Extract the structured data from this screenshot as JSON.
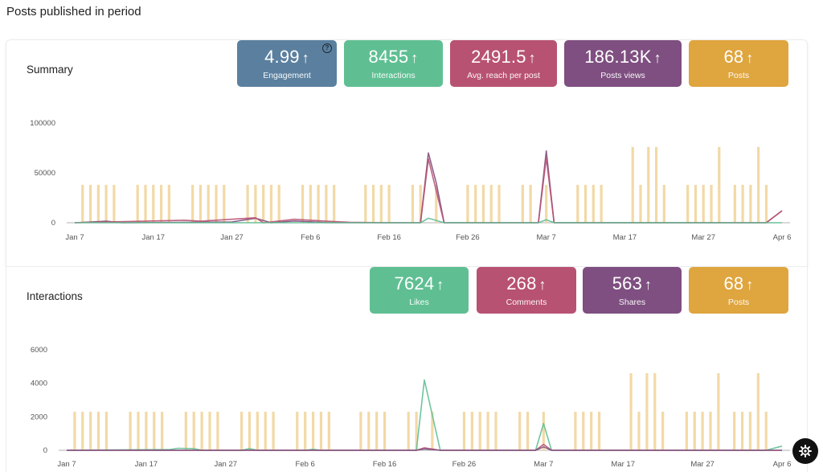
{
  "page": {
    "title": "Posts published in period"
  },
  "summary": {
    "title": "Summary",
    "stats": [
      {
        "key": "engagement",
        "value": "4.99",
        "label": "Engagement",
        "color": "#5b809f",
        "help": "?"
      },
      {
        "key": "interactions",
        "value": "8455",
        "label": "Interactions",
        "color": "#5fbf93"
      },
      {
        "key": "avg-reach",
        "value": "2491.5",
        "label": "Avg. reach per post",
        "color": "#b85272"
      },
      {
        "key": "posts-views",
        "value": "186.13K",
        "label": "Posts views",
        "color": "#7e4f80"
      },
      {
        "key": "posts",
        "value": "68",
        "label": "Posts",
        "color": "#dfa53e"
      }
    ]
  },
  "interactions": {
    "title": "Interactions",
    "stats": [
      {
        "key": "likes",
        "value": "7624",
        "label": "Likes",
        "color": "#5fbf93"
      },
      {
        "key": "comments",
        "value": "268",
        "label": "Comments",
        "color": "#b85272"
      },
      {
        "key": "shares",
        "value": "563",
        "label": "Shares",
        "color": "#7e4f80"
      },
      {
        "key": "posts",
        "value": "68",
        "label": "Posts",
        "color": "#dfa53e"
      }
    ]
  },
  "arrow_glyph": "↑",
  "settings_icon": "gear-icon",
  "chart_data": [
    {
      "type": "bar",
      "chart": "summary",
      "x_ticks": [
        "Jan 7",
        "Jan 17",
        "Jan 27",
        "Feb 6",
        "Feb 16",
        "Feb 26",
        "Mar 7",
        "Mar 17",
        "Mar 27",
        "Apr 6"
      ],
      "y_ticks": [
        "0",
        "50000",
        "100000"
      ],
      "ylim": [
        0,
        100000
      ],
      "xlim_days": [
        0,
        90
      ],
      "bar_color": "#f2d9a6",
      "bars": [
        {
          "d": 1,
          "v": 38000
        },
        {
          "d": 2,
          "v": 38000
        },
        {
          "d": 3,
          "v": 38000
        },
        {
          "d": 4,
          "v": 38000
        },
        {
          "d": 5,
          "v": 38000
        },
        {
          "d": 8,
          "v": 38000
        },
        {
          "d": 9,
          "v": 38000
        },
        {
          "d": 10,
          "v": 38000
        },
        {
          "d": 11,
          "v": 38000
        },
        {
          "d": 12,
          "v": 38000
        },
        {
          "d": 15,
          "v": 38000
        },
        {
          "d": 16,
          "v": 38000
        },
        {
          "d": 17,
          "v": 38000
        },
        {
          "d": 18,
          "v": 38000
        },
        {
          "d": 19,
          "v": 38000
        },
        {
          "d": 22,
          "v": 38000
        },
        {
          "d": 23,
          "v": 38000
        },
        {
          "d": 24,
          "v": 38000
        },
        {
          "d": 25,
          "v": 38000
        },
        {
          "d": 26,
          "v": 38000
        },
        {
          "d": 29,
          "v": 38000
        },
        {
          "d": 30,
          "v": 38000
        },
        {
          "d": 31,
          "v": 38000
        },
        {
          "d": 32,
          "v": 38000
        },
        {
          "d": 33,
          "v": 38000
        },
        {
          "d": 37,
          "v": 38000
        },
        {
          "d": 38,
          "v": 38000
        },
        {
          "d": 39,
          "v": 38000
        },
        {
          "d": 40,
          "v": 38000
        },
        {
          "d": 43,
          "v": 38000
        },
        {
          "d": 44,
          "v": 38000
        },
        {
          "d": 46,
          "v": 38000
        },
        {
          "d": 50,
          "v": 38000
        },
        {
          "d": 51,
          "v": 38000
        },
        {
          "d": 52,
          "v": 38000
        },
        {
          "d": 53,
          "v": 38000
        },
        {
          "d": 54,
          "v": 38000
        },
        {
          "d": 57,
          "v": 38000
        },
        {
          "d": 58,
          "v": 38000
        },
        {
          "d": 60,
          "v": 38000
        },
        {
          "d": 64,
          "v": 38000
        },
        {
          "d": 65,
          "v": 38000
        },
        {
          "d": 66,
          "v": 38000
        },
        {
          "d": 67,
          "v": 38000
        },
        {
          "d": 71,
          "v": 76000
        },
        {
          "d": 72,
          "v": 38000
        },
        {
          "d": 73,
          "v": 76000
        },
        {
          "d": 74,
          "v": 76000
        },
        {
          "d": 75,
          "v": 38000
        },
        {
          "d": 78,
          "v": 38000
        },
        {
          "d": 79,
          "v": 38000
        },
        {
          "d": 80,
          "v": 38000
        },
        {
          "d": 81,
          "v": 38000
        },
        {
          "d": 82,
          "v": 76000
        },
        {
          "d": 84,
          "v": 38000
        },
        {
          "d": 85,
          "v": 38000
        },
        {
          "d": 86,
          "v": 38000
        },
        {
          "d": 87,
          "v": 76000
        },
        {
          "d": 88,
          "v": 38000
        }
      ],
      "series": [
        {
          "color": "#7e4f80",
          "points": [
            [
              0,
              0
            ],
            [
              4,
              1500
            ],
            [
              6,
              0
            ],
            [
              20,
              800
            ],
            [
              23,
              4500
            ],
            [
              25,
              0
            ],
            [
              28,
              1800
            ],
            [
              32,
              200
            ],
            [
              40,
              0
            ],
            [
              44,
              0
            ],
            [
              45,
              70000
            ],
            [
              46,
              40000
            ],
            [
              47,
              0
            ],
            [
              59,
              0
            ],
            [
              60,
              72000
            ],
            [
              61,
              0
            ],
            [
              74,
              0
            ],
            [
              80,
              0
            ],
            [
              88,
              0
            ],
            [
              90,
              12000
            ]
          ]
        },
        {
          "color": "#b85272",
          "points": [
            [
              0,
              0
            ],
            [
              14,
              2500
            ],
            [
              16,
              1500
            ],
            [
              23,
              5000
            ],
            [
              24,
              0
            ],
            [
              28,
              3500
            ],
            [
              32,
              1500
            ],
            [
              35,
              500
            ],
            [
              40,
              0
            ],
            [
              44,
              0
            ],
            [
              45,
              64000
            ],
            [
              47,
              0
            ],
            [
              59,
              0
            ],
            [
              60,
              65000
            ],
            [
              61,
              0
            ],
            [
              88,
              0
            ],
            [
              90,
              12000
            ]
          ]
        },
        {
          "color": "#5fbf93",
          "points": [
            [
              0,
              0
            ],
            [
              44,
              0
            ],
            [
              45,
              4500
            ],
            [
              47,
              0
            ],
            [
              59,
              0
            ],
            [
              60,
              3000
            ],
            [
              61,
              0
            ],
            [
              90,
              0
            ]
          ]
        }
      ]
    },
    {
      "type": "bar",
      "chart": "interactions",
      "x_ticks": [
        "Jan 7",
        "Jan 17",
        "Jan 27",
        "Feb 6",
        "Feb 16",
        "Feb 26",
        "Mar 7",
        "Mar 17",
        "Mar 27",
        "Apr 6"
      ],
      "y_ticks": [
        "0",
        "2000",
        "4000",
        "6000"
      ],
      "ylim": [
        0,
        6000
      ],
      "xlim_days": [
        0,
        90
      ],
      "bar_color": "#f2d9a6",
      "bars": [
        {
          "d": 1,
          "v": 2300
        },
        {
          "d": 2,
          "v": 2300
        },
        {
          "d": 3,
          "v": 2300
        },
        {
          "d": 4,
          "v": 2300
        },
        {
          "d": 5,
          "v": 2300
        },
        {
          "d": 8,
          "v": 2300
        },
        {
          "d": 9,
          "v": 2300
        },
        {
          "d": 10,
          "v": 2300
        },
        {
          "d": 11,
          "v": 2300
        },
        {
          "d": 12,
          "v": 2300
        },
        {
          "d": 15,
          "v": 2300
        },
        {
          "d": 16,
          "v": 2300
        },
        {
          "d": 17,
          "v": 2300
        },
        {
          "d": 18,
          "v": 2300
        },
        {
          "d": 19,
          "v": 2300
        },
        {
          "d": 22,
          "v": 2300
        },
        {
          "d": 23,
          "v": 2300
        },
        {
          "d": 24,
          "v": 2300
        },
        {
          "d": 25,
          "v": 2300
        },
        {
          "d": 26,
          "v": 2300
        },
        {
          "d": 29,
          "v": 2300
        },
        {
          "d": 30,
          "v": 2300
        },
        {
          "d": 31,
          "v": 2300
        },
        {
          "d": 32,
          "v": 2300
        },
        {
          "d": 33,
          "v": 2300
        },
        {
          "d": 37,
          "v": 2300
        },
        {
          "d": 38,
          "v": 2300
        },
        {
          "d": 39,
          "v": 2300
        },
        {
          "d": 40,
          "v": 2300
        },
        {
          "d": 43,
          "v": 2300
        },
        {
          "d": 44,
          "v": 2300
        },
        {
          "d": 46,
          "v": 2300
        },
        {
          "d": 50,
          "v": 2300
        },
        {
          "d": 51,
          "v": 2300
        },
        {
          "d": 52,
          "v": 2300
        },
        {
          "d": 53,
          "v": 2300
        },
        {
          "d": 54,
          "v": 2300
        },
        {
          "d": 57,
          "v": 2300
        },
        {
          "d": 58,
          "v": 2300
        },
        {
          "d": 60,
          "v": 2300
        },
        {
          "d": 64,
          "v": 2300
        },
        {
          "d": 65,
          "v": 2300
        },
        {
          "d": 66,
          "v": 2300
        },
        {
          "d": 67,
          "v": 2300
        },
        {
          "d": 71,
          "v": 4600
        },
        {
          "d": 72,
          "v": 2300
        },
        {
          "d": 73,
          "v": 4600
        },
        {
          "d": 74,
          "v": 4600
        },
        {
          "d": 75,
          "v": 2300
        },
        {
          "d": 78,
          "v": 2300
        },
        {
          "d": 79,
          "v": 2300
        },
        {
          "d": 80,
          "v": 2300
        },
        {
          "d": 81,
          "v": 2300
        },
        {
          "d": 82,
          "v": 4600
        },
        {
          "d": 84,
          "v": 2300
        },
        {
          "d": 85,
          "v": 2300
        },
        {
          "d": 86,
          "v": 2300
        },
        {
          "d": 87,
          "v": 4600
        },
        {
          "d": 88,
          "v": 2300
        }
      ],
      "series": [
        {
          "color": "#5fbf93",
          "points": [
            [
              0,
              0
            ],
            [
              13,
              50
            ],
            [
              14,
              120
            ],
            [
              16,
              100
            ],
            [
              17,
              0
            ],
            [
              22,
              0
            ],
            [
              23,
              100
            ],
            [
              24,
              0
            ],
            [
              30,
              0
            ],
            [
              31,
              60
            ],
            [
              32,
              0
            ],
            [
              44,
              0
            ],
            [
              45,
              4200
            ],
            [
              47,
              0
            ],
            [
              59,
              0
            ],
            [
              60,
              1600
            ],
            [
              61,
              0
            ],
            [
              88,
              0
            ],
            [
              90,
              250
            ]
          ]
        },
        {
          "color": "#b85272",
          "points": [
            [
              0,
              0
            ],
            [
              44,
              0
            ],
            [
              45,
              150
            ],
            [
              47,
              0
            ],
            [
              59,
              0
            ],
            [
              60,
              350
            ],
            [
              61,
              0
            ],
            [
              90,
              0
            ]
          ]
        },
        {
          "color": "#7e4f80",
          "points": [
            [
              0,
              0
            ],
            [
              44,
              0
            ],
            [
              45,
              80
            ],
            [
              47,
              0
            ],
            [
              59,
              0
            ],
            [
              60,
              200
            ],
            [
              61,
              0
            ],
            [
              90,
              0
            ]
          ]
        }
      ]
    }
  ]
}
